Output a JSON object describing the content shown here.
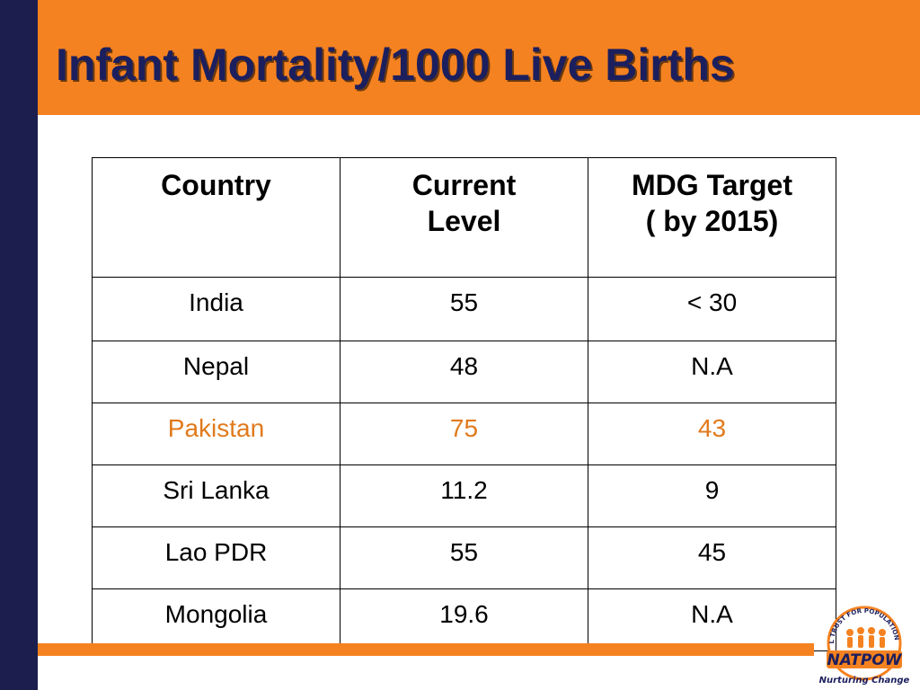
{
  "slide": {
    "title": "Infant Mortality/1000 Live Births"
  },
  "table": {
    "headers": [
      "Country",
      "Current Level",
      "MDG Target ( by 2015)"
    ],
    "header_lines": [
      [
        "Country"
      ],
      [
        "Current",
        "Level"
      ],
      [
        "MDG Target",
        "( by 2015)"
      ]
    ],
    "rows": [
      [
        "India",
        "55",
        "<  30"
      ],
      [
        "Nepal",
        "48",
        "N.A"
      ],
      [
        "Pakistan",
        "75",
        "43"
      ],
      [
        "Sri Lanka",
        "11.2",
        "9"
      ],
      [
        "Lao PDR",
        "55",
        "45"
      ],
      [
        "Mongolia",
        "19.6",
        "N.A"
      ]
    ],
    "highlight_color": "#e07a1c"
  },
  "logo": {
    "ring_text": "NATIONAL TRUST FOR POPULATION WELFARE",
    "name": "NATPOW",
    "tagline": "Nurturing Change"
  },
  "colors": {
    "navy": "#1c1f4e",
    "orange": "#f58220",
    "title_text": "#1c1f5e"
  }
}
